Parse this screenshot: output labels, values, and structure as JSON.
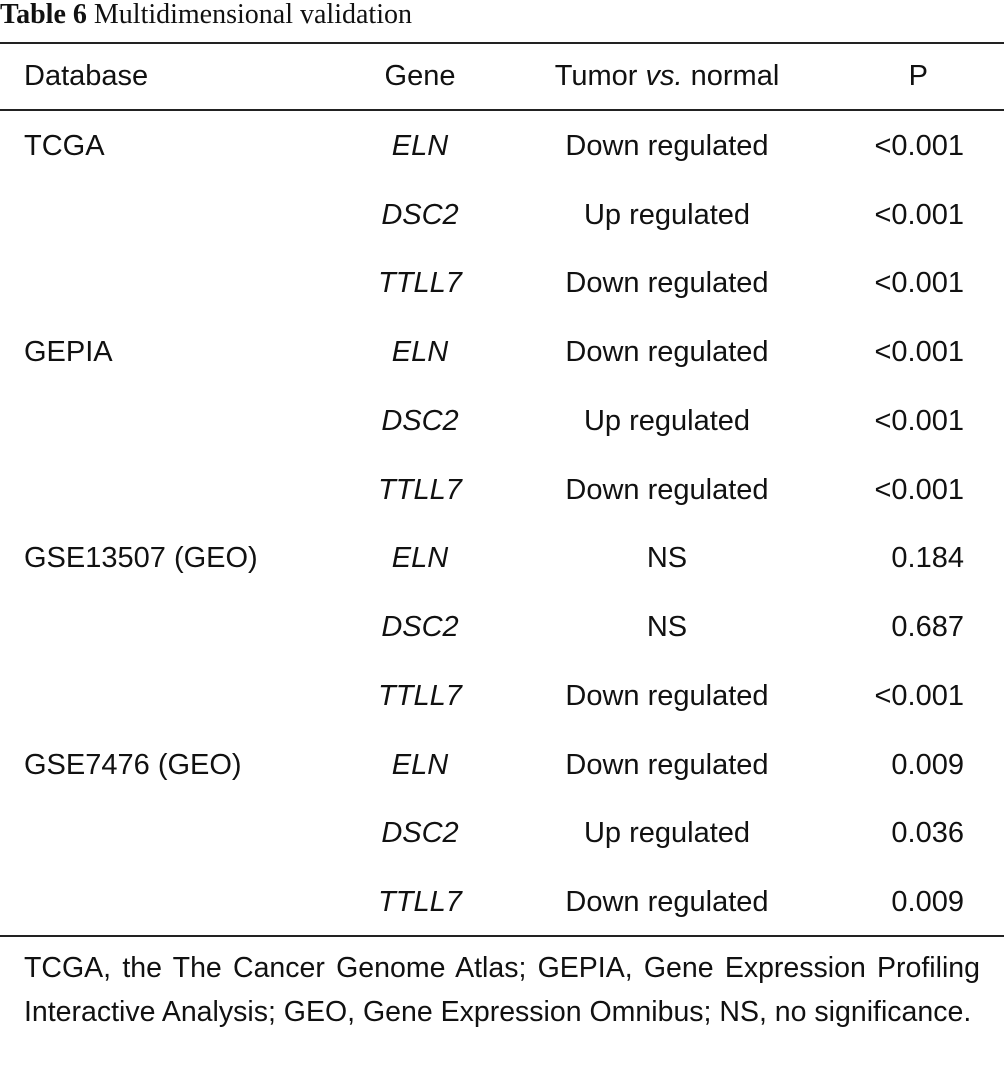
{
  "caption": {
    "label": "Table 6",
    "title": " Multidimensional validation"
  },
  "table": {
    "headers": {
      "database": "Database",
      "gene": "Gene",
      "tumor_prefix": "Tumor ",
      "tumor_vs": "vs.",
      "tumor_suffix": " normal",
      "p": "P"
    },
    "rows": [
      {
        "database": "TCGA",
        "gene": "ELN",
        "regulation": "Down regulated",
        "p": "<0.001"
      },
      {
        "database": "",
        "gene": "DSC2",
        "regulation": "Up regulated",
        "p": "<0.001"
      },
      {
        "database": "",
        "gene": "TTLL7",
        "regulation": "Down regulated",
        "p": "<0.001"
      },
      {
        "database": "GEPIA",
        "gene": "ELN",
        "regulation": "Down regulated",
        "p": "<0.001"
      },
      {
        "database": "",
        "gene": "DSC2",
        "regulation": "Up regulated",
        "p": "<0.001"
      },
      {
        "database": "",
        "gene": "TTLL7",
        "regulation": "Down regulated",
        "p": "<0.001"
      },
      {
        "database": "GSE13507 (GEO)",
        "gene": "ELN",
        "regulation": "NS",
        "p": "0.184"
      },
      {
        "database": "",
        "gene": "DSC2",
        "regulation": "NS",
        "p": "0.687"
      },
      {
        "database": "",
        "gene": "TTLL7",
        "regulation": "Down regulated",
        "p": "<0.001"
      },
      {
        "database": "GSE7476 (GEO)",
        "gene": "ELN",
        "regulation": "Down regulated",
        "p": "0.009"
      },
      {
        "database": "",
        "gene": "DSC2",
        "regulation": "Up regulated",
        "p": "0.036"
      },
      {
        "database": "",
        "gene": "TTLL7",
        "regulation": "Down regulated",
        "p": "0.009"
      }
    ]
  },
  "footnote": "TCGA, the The Cancer Genome Atlas; GEPIA, Gene Expression Profiling Interactive Analysis; GEO, Gene Expression Omnibus; NS, no significance."
}
